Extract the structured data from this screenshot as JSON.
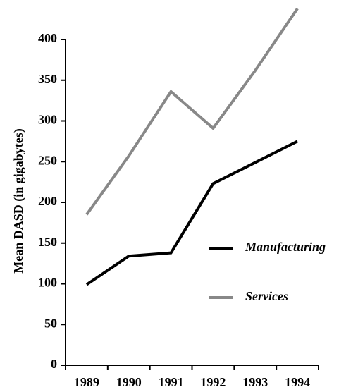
{
  "chart_data": {
    "type": "line",
    "y_label": "Mean DASD (in gigabytes)",
    "categories": [
      "1989",
      "1990",
      "1991",
      "1992",
      "1993",
      "1994"
    ],
    "series": [
      {
        "name": "Manufacturing",
        "color": "#000000",
        "values": [
          99,
          134,
          138,
          223,
          249,
          275
        ]
      },
      {
        "name": "Services",
        "color": "#888888",
        "values": [
          185,
          257,
          336,
          291,
          362,
          438
        ]
      }
    ],
    "ylim": [
      0,
      400
    ],
    "yticks": [
      0,
      50,
      100,
      150,
      200,
      250,
      300,
      350,
      400
    ],
    "grid": false
  }
}
